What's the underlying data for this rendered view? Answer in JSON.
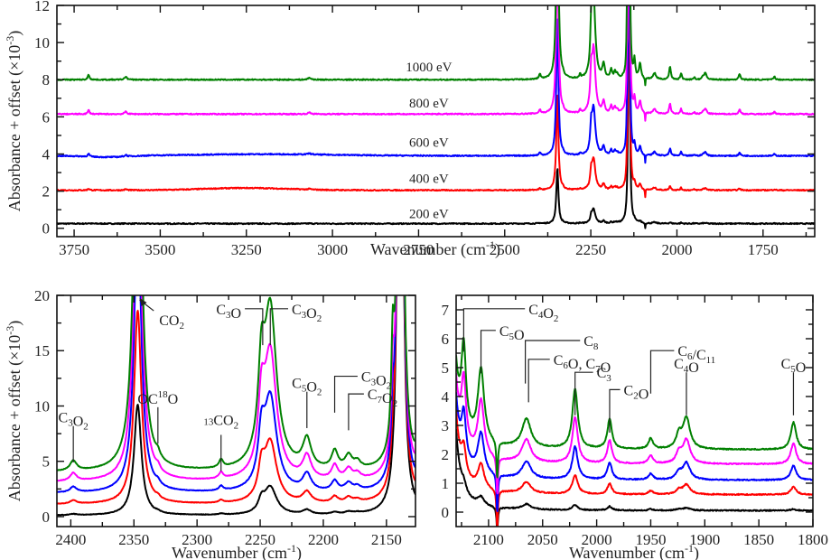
{
  "chart_data": [
    {
      "id": "top",
      "type": "line",
      "xlabel": "Wavenumber (cm-1)",
      "xlabel_sup": "-1",
      "ylabel": "Absorbance + offset (×10-3)",
      "xlim": [
        3800,
        1600
      ],
      "ylim": [
        -0.45,
        12
      ],
      "xticks": [
        3750,
        3500,
        3250,
        3000,
        2750,
        2500,
        2250,
        2000,
        1750
      ],
      "xminor": [
        3625,
        3375,
        3125,
        2875,
        2625,
        2375,
        2125,
        1875,
        1625
      ],
      "yticks": [
        0,
        2,
        4,
        6,
        8,
        10,
        12
      ],
      "yminor": [
        1,
        3,
        5,
        7,
        9,
        11
      ],
      "grid": false,
      "series": [
        {
          "name": "200 eV",
          "color": "#000000",
          "offset": 0.25,
          "label_x": 2720,
          "label_y": 0.55
        },
        {
          "name": "400 eV",
          "color": "#ff0000",
          "offset": 2.05,
          "label_x": 2720,
          "label_y": 2.45
        },
        {
          "name": "600 eV",
          "color": "#0000ff",
          "offset": 3.9,
          "label_x": 2720,
          "label_y": 4.4
        },
        {
          "name": "800 eV",
          "color": "#ff00ff",
          "offset": 6.15,
          "label_x": 2720,
          "label_y": 6.5
        },
        {
          "name": "1000 eV",
          "color": "#008000",
          "offset": 8.0,
          "label_x": 2720,
          "label_y": 8.45
        }
      ],
      "peaks_cm1": [
        3708,
        3600,
        3067,
        2398,
        2347,
        2281,
        2242,
        2213,
        2191,
        2180,
        2140,
        2130,
        2107,
        2087,
        2065,
        2020,
        1988,
        1950,
        1917,
        1818,
        1717
      ],
      "broad_feature": {
        "center": 3250,
        "series": "400 eV",
        "amplitude": 0.4
      }
    },
    {
      "id": "bottom-left",
      "type": "line",
      "xlabel": "Wavenumber (cm-1)",
      "xlabel_sup": "-1",
      "ylabel": "Absorbance + offset (×10-3)",
      "xlim": [
        2411,
        2127
      ],
      "ylim": [
        -0.9,
        20
      ],
      "xticks": [
        2400,
        2350,
        2300,
        2250,
        2200,
        2150
      ],
      "xminor": [
        2375,
        2325,
        2275,
        2225,
        2175
      ],
      "yticks": [
        0,
        5,
        10,
        15,
        20
      ],
      "yminor": [
        2.5,
        7.5,
        12.5,
        17.5
      ],
      "grid": false,
      "series": [
        {
          "name": "200 eV",
          "color": "#000000",
          "offset": 0.1
        },
        {
          "name": "400 eV",
          "color": "#ff0000",
          "offset": 1.1
        },
        {
          "name": "600 eV",
          "color": "#0000ff",
          "offset": 2.1
        },
        {
          "name": "800 eV",
          "color": "#ff00ff",
          "offset": 3.1
        },
        {
          "name": "1000 eV",
          "color": "#008000",
          "offset": 4.0
        }
      ],
      "annotations": [
        {
          "label": "CO2",
          "x": 2347,
          "text_x": 2330,
          "text_y": 17.3
        },
        {
          "label": "C3O2",
          "x": 2398,
          "text_x": 2398,
          "text_y": 7.7
        },
        {
          "label": "OC18O",
          "x": 2331,
          "text_x": 2331,
          "text_y": 9.4
        },
        {
          "label": "13CO2",
          "x": 2281,
          "text_x": 2281,
          "text_y": 6.9
        },
        {
          "label": "C3O",
          "x": 2248,
          "text_x": 2265,
          "text_y": 18.3
        },
        {
          "label": "C3O2",
          "x": 2242,
          "text_x": 2225,
          "text_y": 18.3
        },
        {
          "label": "C5O2",
          "x": 2213,
          "text_x": 2213,
          "text_y": 10.8
        },
        {
          "label": "C3O2",
          "x": 2191,
          "text_x": 2170,
          "text_y": 12.2
        },
        {
          "label": "C7O2",
          "x": 2180,
          "text_x": 2165,
          "text_y": 10.6
        }
      ]
    },
    {
      "id": "bottom-right",
      "type": "line",
      "xlabel": "Wavenumber (cm-1)",
      "xlabel_sup": "-1",
      "ylabel": "",
      "xlim": [
        2130,
        1800
      ],
      "ylim": [
        -0.5,
        7.5
      ],
      "xticks": [
        2100,
        2050,
        2000,
        1950,
        1900,
        1850,
        1800
      ],
      "xminor": [
        2125,
        2075,
        2025,
        1975,
        1925,
        1875,
        1825
      ],
      "yticks": [
        0,
        1,
        2,
        3,
        4,
        5,
        6,
        7
      ],
      "yminor": [
        0.5,
        1.5,
        2.5,
        3.5,
        4.5,
        5.5,
        6.5
      ],
      "grid": false,
      "series": [
        {
          "name": "200 eV",
          "color": "#000000",
          "offset": 0.05
        },
        {
          "name": "400 eV",
          "color": "#ff0000",
          "offset": 0.6
        },
        {
          "name": "600 eV",
          "color": "#0000ff",
          "offset": 1.1
        },
        {
          "name": "800 eV",
          "color": "#ff00ff",
          "offset": 1.65
        },
        {
          "name": "1000 eV",
          "color": "#008000",
          "offset": 2.15
        }
      ],
      "annotations": [
        {
          "label": "C4O2",
          "x": 2123,
          "text_x": 2063,
          "text_y": 6.85
        },
        {
          "label": "C5O",
          "x": 2107,
          "text_x": 2090,
          "text_y": 6.1
        },
        {
          "label": "C8",
          "x": 2066,
          "text_x": 2012,
          "text_y": 5.75
        },
        {
          "label": "C6O, C7O",
          "x": 2063,
          "text_x": 2040,
          "text_y": 5.1
        },
        {
          "label": "C3",
          "x": 2020,
          "text_x": 2000,
          "text_y": 4.65
        },
        {
          "label": "C2O",
          "x": 1988,
          "text_x": 1975,
          "text_y": 4.05
        },
        {
          "label": "C6/C11",
          "x": 1950,
          "text_x": 1925,
          "text_y": 5.4
        },
        {
          "label": "C4O",
          "x": 1917,
          "text_x": 1917,
          "text_y": 4.65
        },
        {
          "label": "C5O",
          "x": 1818,
          "text_x": 1818,
          "text_y": 4.65
        }
      ]
    }
  ]
}
